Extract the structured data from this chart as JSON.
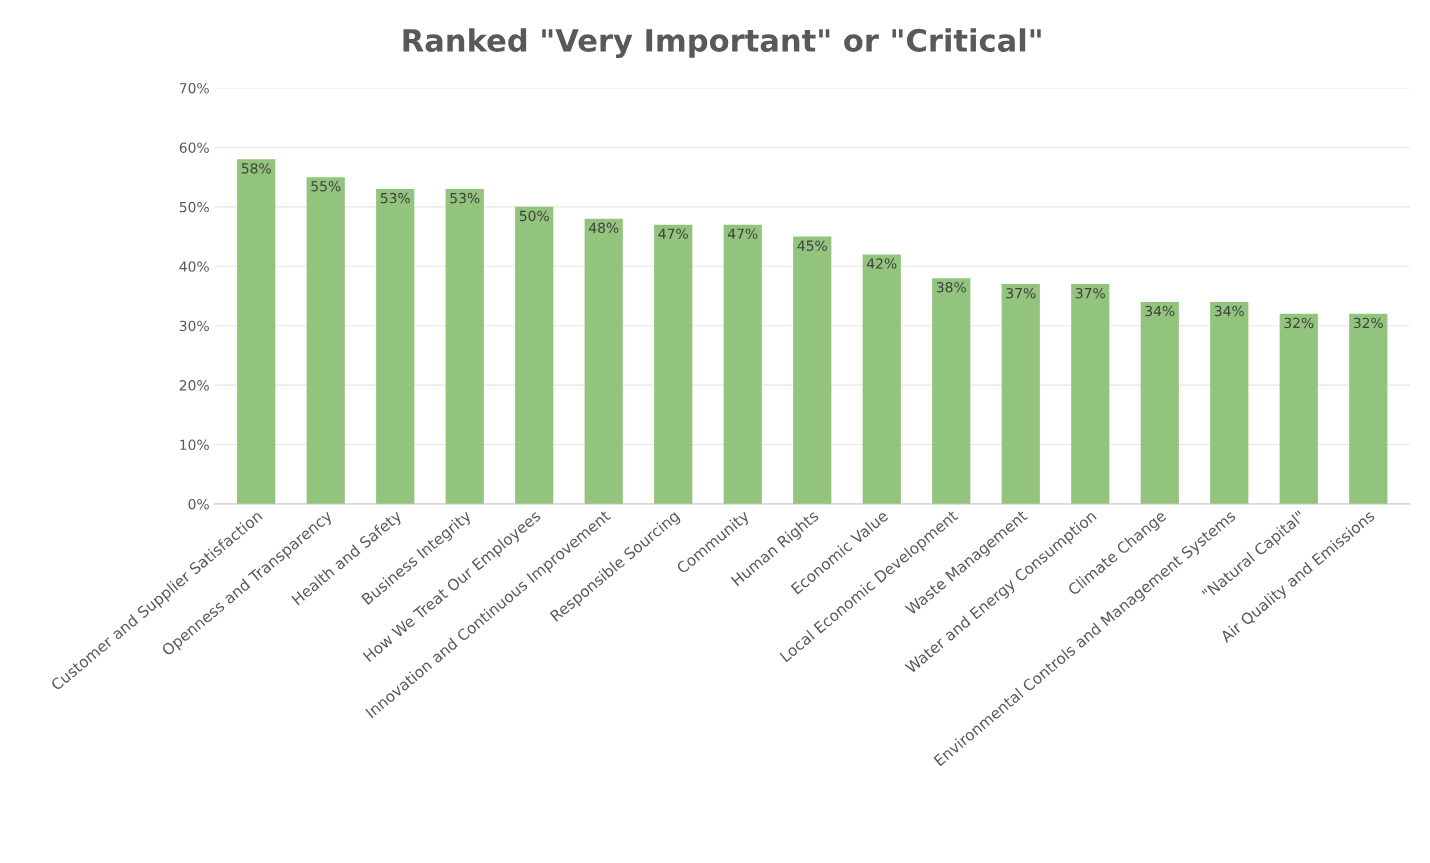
{
  "chart_data": {
    "type": "bar",
    "title": "Ranked \"Very Important\" or \"Critical\"",
    "categories": [
      "Customer and Supplier Satisfaction",
      "Openness and Transparency",
      "Health and Safety",
      "Business Integrity",
      "How We Treat Our Employees",
      "Innovation and Continuous Improvement",
      "Responsible Sourcing",
      "Community",
      "Human Rights",
      "Economic Value",
      "Local Economic Development",
      "Waste Management",
      "Water and Energy Consumption",
      "Climate Change",
      "Environmental Controls and Management Systems",
      "\"Natural Capital\"",
      "Air Quality and Emissions"
    ],
    "values": [
      58,
      55,
      53,
      53,
      50,
      48,
      47,
      47,
      45,
      42,
      38,
      37,
      37,
      34,
      34,
      32,
      32
    ],
    "value_labels": [
      "58%",
      "55%",
      "53%",
      "53%",
      "50%",
      "48%",
      "47%",
      "47%",
      "45%",
      "42%",
      "38%",
      "37%",
      "37%",
      "34%",
      "34%",
      "32%",
      "32%"
    ],
    "color": "#93c47d",
    "ylim": [
      0,
      70
    ],
    "yticks": [
      {
        "value": 0,
        "label": "0%"
      },
      {
        "value": 10,
        "label": "10%"
      },
      {
        "value": 20,
        "label": "20%"
      },
      {
        "value": 30,
        "label": "30%"
      },
      {
        "value": 40,
        "label": "40%"
      },
      {
        "value": 50,
        "label": "50%"
      },
      {
        "value": 60,
        "label": "60%"
      },
      {
        "value": 70,
        "label": "70%"
      }
    ],
    "grid": "y",
    "legend": false
  }
}
